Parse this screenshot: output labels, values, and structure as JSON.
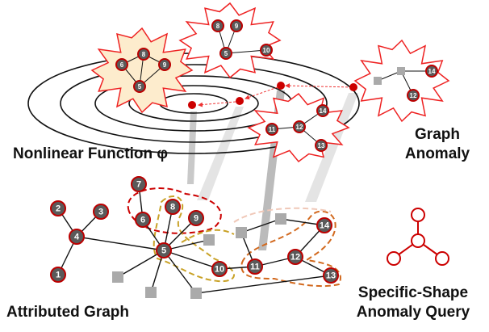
{
  "labels": {
    "function": "Nonlinear Function φ",
    "anomaly": [
      "Graph",
      "Anomaly"
    ],
    "attributed": "Attributed Graph",
    "query": [
      "Specific-Shape",
      "Anomaly Query"
    ]
  },
  "graph": {
    "nodes": [
      "1",
      "2",
      "3",
      "4",
      "5",
      "6",
      "7",
      "8",
      "9",
      "10",
      "11",
      "12",
      "13",
      "14"
    ]
  },
  "stars": [
    {
      "nodes": [
        "6",
        "8",
        "9",
        "5"
      ]
    },
    {
      "nodes": [
        "8",
        "9",
        "5",
        "10"
      ]
    },
    {
      "nodes": [
        "14",
        "12"
      ]
    },
    {
      "nodes": [
        "14",
        "12",
        "13",
        "11"
      ]
    }
  ]
}
